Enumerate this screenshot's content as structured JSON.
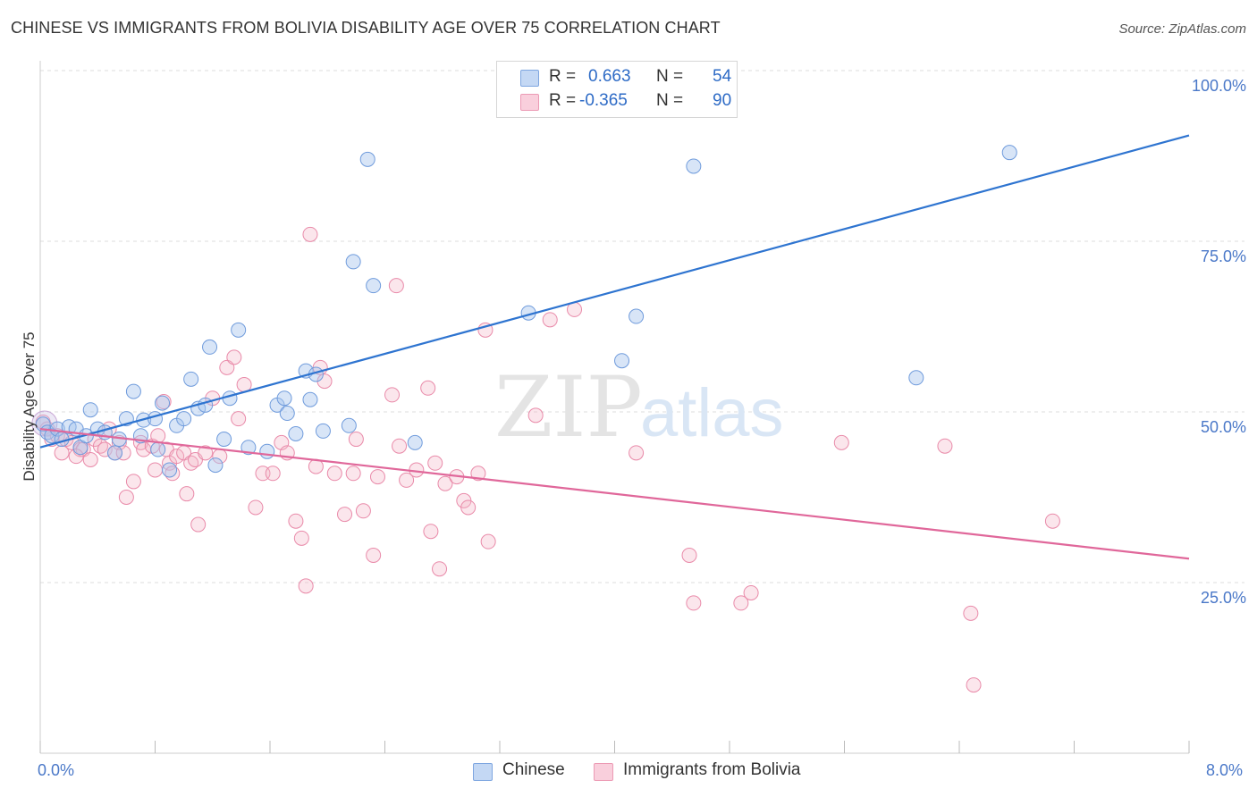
{
  "title": "CHINESE VS IMMIGRANTS FROM BOLIVIA DISABILITY AGE OVER 75 CORRELATION CHART",
  "source": "Source: ZipAtlas.com",
  "watermark": {
    "zip": "ZIP",
    "atlas": "atlas"
  },
  "legend": {
    "r_label": "R =",
    "n_label": "N =",
    "rows": [
      {
        "r": "0.663",
        "n": "54"
      },
      {
        "r": "-0.365",
        "n": "90"
      }
    ]
  },
  "chart_data": {
    "type": "scatter",
    "title": "CHINESE VS IMMIGRANTS FROM BOLIVIA DISABILITY AGE OVER 75 CORRELATION CHART",
    "xlabel": "",
    "ylabel": "Disability Age Over 75",
    "xlim": [
      0,
      8
    ],
    "ylim": [
      0,
      100
    ],
    "x_tick_labels": [
      "0.0%",
      "8.0%"
    ],
    "y_ticks": [
      25,
      50,
      75,
      100
    ],
    "y_tick_labels": [
      "25.0%",
      "50.0%",
      "75.0%",
      "100.0%"
    ],
    "grid": "horizontal dashed",
    "legend_position": "top-center",
    "colors": {
      "Chinese": "#a9c6ee",
      "Chinese_line": "#2e74d0",
      "Immigrants from Bolivia": "#f4b6c9",
      "Immigrants from Bolivia_line": "#e0679a"
    },
    "series": [
      {
        "name": "Chinese",
        "r": 0.663,
        "n": 54,
        "trend": [
          [
            0,
            44.8
          ],
          [
            8,
            90.5
          ]
        ],
        "points": [
          [
            0.02,
            48.2
          ],
          [
            0.05,
            47.0
          ],
          [
            0.08,
            46.5
          ],
          [
            0.12,
            47.5
          ],
          [
            0.15,
            46.0
          ],
          [
            0.2,
            47.8
          ],
          [
            0.25,
            47.5
          ],
          [
            0.28,
            44.8
          ],
          [
            0.32,
            46.5
          ],
          [
            0.35,
            50.3
          ],
          [
            0.4,
            47.5
          ],
          [
            0.45,
            47.0
          ],
          [
            0.52,
            44.0
          ],
          [
            0.55,
            46.0
          ],
          [
            0.6,
            49.0
          ],
          [
            0.65,
            53.0
          ],
          [
            0.7,
            46.5
          ],
          [
            0.72,
            48.8
          ],
          [
            0.8,
            49.0
          ],
          [
            0.82,
            44.5
          ],
          [
            0.85,
            51.3
          ],
          [
            0.9,
            41.5
          ],
          [
            0.95,
            48.0
          ],
          [
            1.0,
            49.0
          ],
          [
            1.05,
            54.8
          ],
          [
            1.1,
            50.5
          ],
          [
            1.15,
            51.0
          ],
          [
            1.18,
            59.5
          ],
          [
            1.22,
            42.2
          ],
          [
            1.28,
            46.0
          ],
          [
            1.32,
            52.0
          ],
          [
            1.38,
            62.0
          ],
          [
            1.45,
            44.8
          ],
          [
            1.58,
            44.2
          ],
          [
            1.65,
            51.0
          ],
          [
            1.7,
            52.0
          ],
          [
            1.72,
            49.8
          ],
          [
            1.78,
            46.8
          ],
          [
            1.85,
            56.0
          ],
          [
            1.88,
            51.8
          ],
          [
            1.92,
            55.5
          ],
          [
            1.97,
            47.2
          ],
          [
            2.15,
            48.0
          ],
          [
            2.18,
            72.0
          ],
          [
            2.28,
            87.0
          ],
          [
            2.32,
            68.5
          ],
          [
            2.61,
            45.5
          ],
          [
            3.4,
            64.5
          ],
          [
            3.52,
            100.0
          ],
          [
            4.05,
            57.5
          ],
          [
            4.15,
            64.0
          ],
          [
            4.55,
            86.0
          ],
          [
            6.1,
            55.0
          ],
          [
            6.75,
            88.0
          ]
        ]
      },
      {
        "name": "Immigrants from Bolivia",
        "r": -0.365,
        "n": 90,
        "trend": [
          [
            0,
            47.5
          ],
          [
            8,
            28.5
          ]
        ],
        "points": [
          [
            0.02,
            48.5
          ],
          [
            0.05,
            47.5
          ],
          [
            0.08,
            46.0
          ],
          [
            0.12,
            46.5
          ],
          [
            0.15,
            44.0
          ],
          [
            0.18,
            46.0
          ],
          [
            0.22,
            45.5
          ],
          [
            0.28,
            44.5
          ],
          [
            0.3,
            44.5
          ],
          [
            0.35,
            43.0
          ],
          [
            0.38,
            46.0
          ],
          [
            0.42,
            45.0
          ],
          [
            0.45,
            44.5
          ],
          [
            0.48,
            47.5
          ],
          [
            0.52,
            44.0
          ],
          [
            0.55,
            45.5
          ],
          [
            0.58,
            44.0
          ],
          [
            0.6,
            37.5
          ],
          [
            0.65,
            39.8
          ],
          [
            0.7,
            45.5
          ],
          [
            0.72,
            44.5
          ],
          [
            0.78,
            45.0
          ],
          [
            0.8,
            41.5
          ],
          [
            0.82,
            46.5
          ],
          [
            0.86,
            51.5
          ],
          [
            0.88,
            44.5
          ],
          [
            0.9,
            42.5
          ],
          [
            0.92,
            41.0
          ],
          [
            0.95,
            43.5
          ],
          [
            1.0,
            44.0
          ],
          [
            1.02,
            38.0
          ],
          [
            1.05,
            42.5
          ],
          [
            1.08,
            43.0
          ],
          [
            1.1,
            33.5
          ],
          [
            1.15,
            44.0
          ],
          [
            1.2,
            52.0
          ],
          [
            1.25,
            43.5
          ],
          [
            1.3,
            56.5
          ],
          [
            1.35,
            58.0
          ],
          [
            1.38,
            49.0
          ],
          [
            1.42,
            54.0
          ],
          [
            1.5,
            36.0
          ],
          [
            1.55,
            41.0
          ],
          [
            1.62,
            41.0
          ],
          [
            1.68,
            45.5
          ],
          [
            1.72,
            44.0
          ],
          [
            1.78,
            34.0
          ],
          [
            1.82,
            31.5
          ],
          [
            1.85,
            24.5
          ],
          [
            1.88,
            76.0
          ],
          [
            1.92,
            42.0
          ],
          [
            1.95,
            56.5
          ],
          [
            1.98,
            54.5
          ],
          [
            2.05,
            41.0
          ],
          [
            2.12,
            35.0
          ],
          [
            2.18,
            41.0
          ],
          [
            2.2,
            46.0
          ],
          [
            2.25,
            35.5
          ],
          [
            2.32,
            29.0
          ],
          [
            2.35,
            40.5
          ],
          [
            2.45,
            52.5
          ],
          [
            2.48,
            68.5
          ],
          [
            2.5,
            45.0
          ],
          [
            2.55,
            40.0
          ],
          [
            2.62,
            41.5
          ],
          [
            2.7,
            53.5
          ],
          [
            2.72,
            32.5
          ],
          [
            2.75,
            42.5
          ],
          [
            2.78,
            27.0
          ],
          [
            2.82,
            39.5
          ],
          [
            2.9,
            40.5
          ],
          [
            2.95,
            37.0
          ],
          [
            2.98,
            36.0
          ],
          [
            3.05,
            41.0
          ],
          [
            3.1,
            62.0
          ],
          [
            3.12,
            31.0
          ],
          [
            3.45,
            49.5
          ],
          [
            3.55,
            63.5
          ],
          [
            3.72,
            65.0
          ],
          [
            4.15,
            44.0
          ],
          [
            4.52,
            29.0
          ],
          [
            4.55,
            22.0
          ],
          [
            4.88,
            22.0
          ],
          [
            4.95,
            23.5
          ],
          [
            5.58,
            45.5
          ],
          [
            6.3,
            45.0
          ],
          [
            6.48,
            20.5
          ],
          [
            6.5,
            10.0
          ],
          [
            7.05,
            34.0
          ],
          [
            0.25,
            43.5
          ]
        ]
      }
    ]
  },
  "bottom_legend": [
    "Chinese",
    "Immigrants from Bolivia"
  ]
}
